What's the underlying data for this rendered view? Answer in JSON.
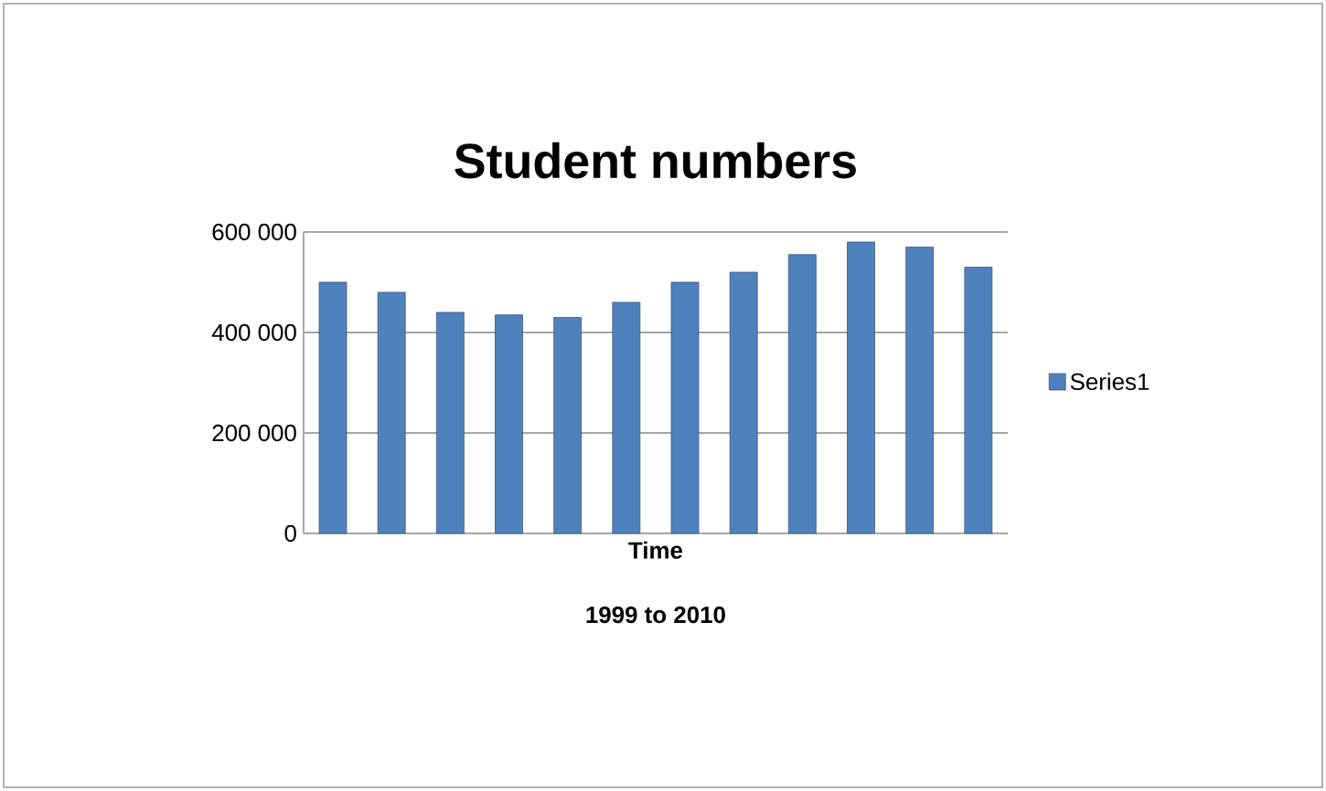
{
  "chart_data": {
    "type": "bar",
    "title": "Student numbers",
    "xlabel": "Time",
    "annotations": [
      "1999 to 2010"
    ],
    "categories": [
      null,
      null,
      null,
      null,
      null,
      null,
      null,
      null,
      null,
      null,
      null,
      null
    ],
    "series": [
      {
        "name": "Series1",
        "color": "#4f81bd",
        "values": [
          500000,
          480000,
          440000,
          435000,
          430000,
          460000,
          500000,
          520000,
          555000,
          580000,
          570000,
          530000
        ]
      }
    ],
    "ylim": [
      0,
      600000
    ],
    "yticks": [
      {
        "value": 0,
        "label": "0"
      },
      {
        "value": 200000,
        "label": "200 000"
      },
      {
        "value": 400000,
        "label": "400 000"
      },
      {
        "value": 600000,
        "label": "600 000"
      }
    ],
    "grid": "y",
    "legend": "right"
  }
}
